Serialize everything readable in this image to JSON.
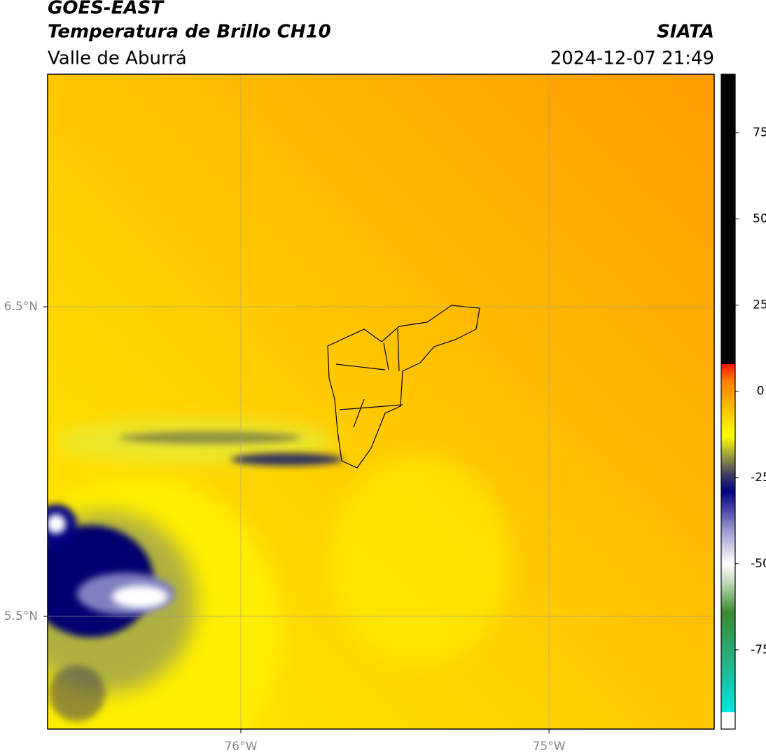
{
  "map": {
    "title": "GOES-EAST",
    "subtitle": "Temperatura de Brillo CH10",
    "region": "Valle de Aburrá",
    "source": "SIATA",
    "timestamp": "2024-12-07 21:49",
    "xlim": [
      -76.627,
      -74.464
    ],
    "ylim": [
      5.136,
      7.251
    ],
    "xticks": [
      {
        "value": -76,
        "label": "76°W"
      },
      {
        "value": -75,
        "label": "75°W"
      }
    ],
    "yticks": [
      {
        "value": 6.5,
        "label": "6.5°N"
      },
      {
        "value": 5.5,
        "label": "5.5°N"
      }
    ],
    "grid": true,
    "colorbar": {
      "lim": [
        -98,
        92
      ],
      "ticks": [
        75,
        50,
        25,
        0,
        -25,
        -50,
        -75
      ],
      "stops": [
        {
          "value": -98,
          "color": "#ffffff"
        },
        {
          "value": -93,
          "color": "#ffffff"
        },
        {
          "value": -93,
          "color": "#00e8e0"
        },
        {
          "value": -80,
          "color": "#20b890"
        },
        {
          "value": -64,
          "color": "#3a8a30"
        },
        {
          "value": -56,
          "color": "#b8d4b0"
        },
        {
          "value": -50,
          "color": "#ffffff"
        },
        {
          "value": -40,
          "color": "#9898d0"
        },
        {
          "value": -29,
          "color": "#000080"
        },
        {
          "value": -24,
          "color": "#404060"
        },
        {
          "value": -18,
          "color": "#a8a838"
        },
        {
          "value": -13,
          "color": "#ffff00"
        },
        {
          "value": -5,
          "color": "#ffc000"
        },
        {
          "value": 3,
          "color": "#ff8000"
        },
        {
          "value": 8,
          "color": "#ff1000"
        },
        {
          "value": 8,
          "color": "#000000"
        },
        {
          "value": 92,
          "color": "#000000"
        }
      ]
    }
  }
}
